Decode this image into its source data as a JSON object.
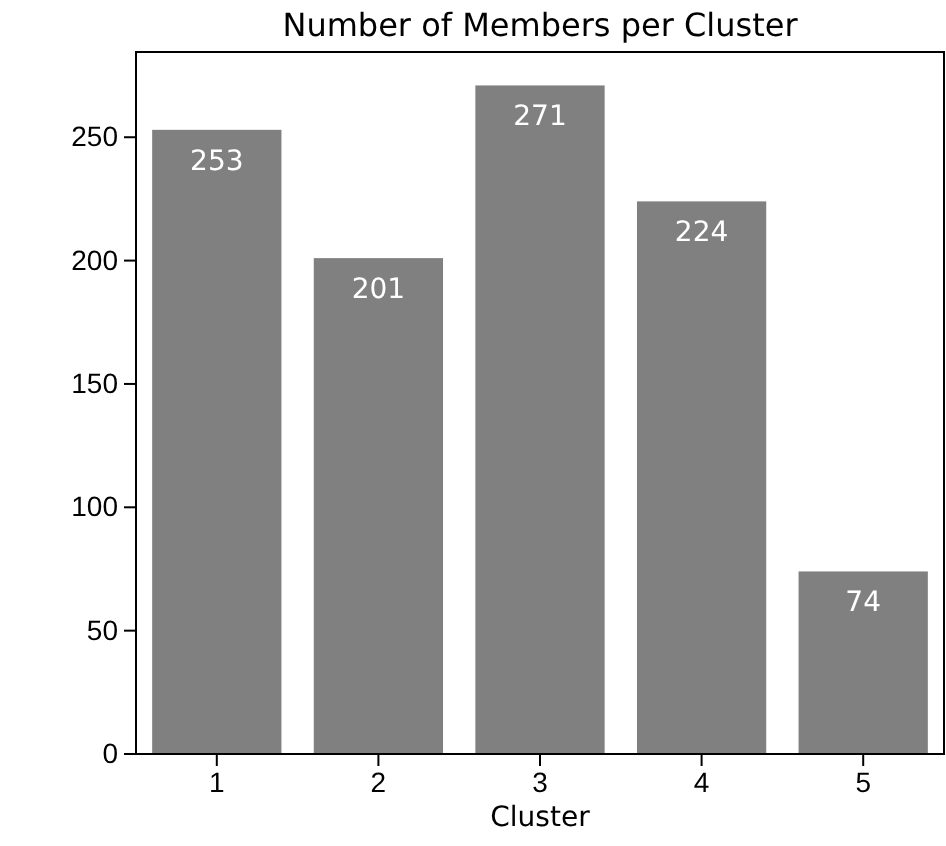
{
  "chart_data": {
    "type": "bar",
    "title": "Number of Members per Cluster",
    "xlabel": "Cluster",
    "categories": [
      "1",
      "2",
      "3",
      "4",
      "5"
    ],
    "values": [
      253,
      201,
      271,
      224,
      74
    ],
    "color": "#808080",
    "ylim": [
      0,
      284.55
    ],
    "yticks": [
      0,
      50,
      100,
      150,
      200,
      250
    ],
    "data_labels": true,
    "grid": false
  }
}
